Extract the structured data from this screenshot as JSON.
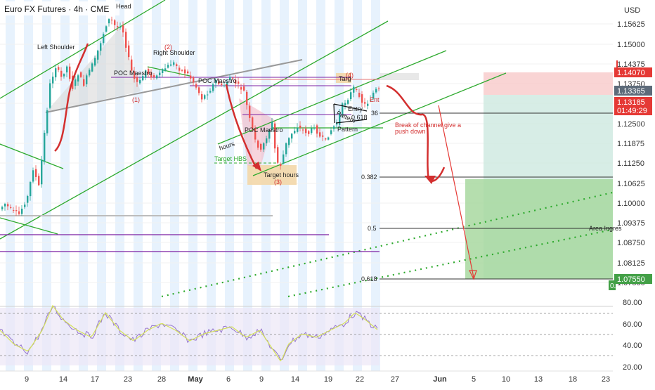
{
  "header": {
    "title": "Euro FX Futures · 4h · CME"
  },
  "chart_data": {
    "type": "candlestick",
    "title": "Euro FX Futures · 4h · CME",
    "currency": "USD",
    "y_ticks": [
      "1.15625",
      "1.15000",
      "1.14375",
      "1.13750",
      "1.13125",
      "1.12500",
      "1.11875",
      "1.11250",
      "1.10625",
      "1.10000",
      "1.09375",
      "1.08750",
      "1.08125",
      "1.07500"
    ],
    "x_ticks": [
      "9",
      "14",
      "17",
      "23",
      "28",
      "May",
      "6",
      "9",
      "14",
      "19",
      "22",
      "27",
      "Jun",
      "5",
      "10",
      "13",
      "18",
      "23"
    ],
    "price_badges": [
      {
        "label": "1.14070",
        "color": "#e53935"
      },
      {
        "label": "1.13365",
        "color": "#5d6b7a"
      },
      {
        "label": "1.13185",
        "color": "#e53935"
      },
      {
        "label": "01:49:29",
        "color": "#e53935"
      },
      {
        "label": "1.07550",
        "color": "#43a047"
      },
      {
        "label": "0.",
        "color": "#43a047"
      }
    ],
    "fib_levels": [
      {
        "label": "0.236",
        "short": "36"
      },
      {
        "label": "0.382",
        "short": "0.382"
      },
      {
        "label": "0.5",
        "short": "0.5"
      },
      {
        "label": "0.618",
        "short": "0.618"
      }
    ],
    "annotations": [
      "Head",
      "Left Shoulder",
      "Right Shoulder",
      "POC Maestro",
      "POC Maestro",
      "POC Maestro",
      "(1)",
      "(2)",
      "(3)",
      "(4)",
      "Target HBS",
      "hours",
      "Target hours",
      "Targ",
      "Entry",
      "Pattern",
      "Pattern",
      "0.618",
      "Break of channel give a",
      "push down",
      "Area Ingres",
      "Ent"
    ],
    "rsi": {
      "y_ticks": [
        "80.00",
        "60.00",
        "40.00",
        "20.00"
      ]
    },
    "colors": {
      "up": "#26a69a",
      "down": "#ef5350",
      "channel": "#2eaa2e",
      "level": "#7b1fa2",
      "arrow": "#d32f2f",
      "rsi": "#9575cd"
    }
  }
}
